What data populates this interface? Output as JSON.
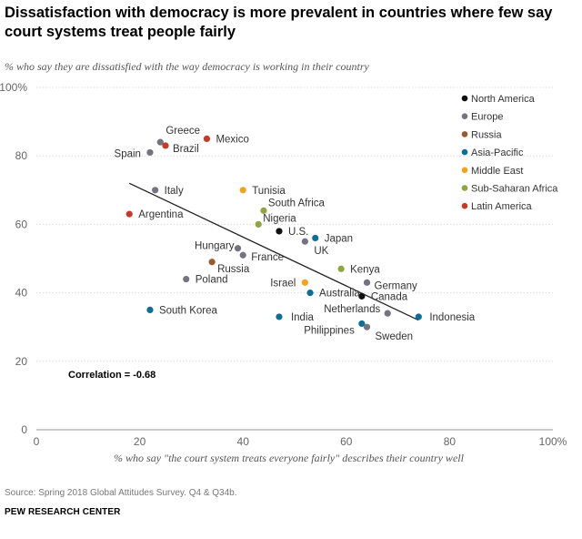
{
  "title": "Dissatisfaction with democracy is more prevalent in countries where few say court systems treat people fairly",
  "subtitle": "% who say they are dissatisfied with the way democracy is working in their country",
  "source": "Source: Spring 2018 Global Attitudes Survey. Q4 & Q34b.",
  "brand": "PEW RESEARCH CENTER",
  "colors": {
    "North America": "#111111",
    "Europe": "#767381",
    "Russia": "#9b5a2e",
    "Asia-Pacific": "#0f6e96",
    "Middle East": "#f0a41e",
    "Sub-Saharan Africa": "#8fa443",
    "Latin America": "#c43b2a"
  },
  "chart_data": {
    "type": "scatter",
    "title": "Dissatisfaction with democracy is more prevalent in countries where few say court systems treat people fairly",
    "xlabel": "% who say \"the court system treats everyone fairly\" describes their country well",
    "ylabel": "% who say they are dissatisfied with the way democracy is working in their country",
    "xlim": [
      0,
      100
    ],
    "ylim": [
      0,
      100
    ],
    "x_ticks": [
      "0",
      "20",
      "40",
      "60",
      "80",
      "100%"
    ],
    "y_ticks": [
      "0",
      "20",
      "40",
      "60",
      "80",
      "100%"
    ],
    "correlation_label": "Correlation = -0.68",
    "trendline": [
      [
        18,
        72
      ],
      [
        74,
        32
      ]
    ],
    "legend": [
      "North America",
      "Europe",
      "Russia",
      "Asia-Pacific",
      "Middle East",
      "Sub-Saharan Africa",
      "Latin America"
    ],
    "points": [
      {
        "label": "Greece",
        "x": 24,
        "y": 84,
        "region": "Europe",
        "pos": "above"
      },
      {
        "label": "Spain",
        "x": 22,
        "y": 81,
        "region": "Europe",
        "pos": "left"
      },
      {
        "label": "Brazil",
        "x": 25,
        "y": 83,
        "region": "Latin America",
        "pos": "right"
      },
      {
        "label": "Mexico",
        "x": 33,
        "y": 85,
        "region": "Latin America",
        "pos": "right"
      },
      {
        "label": "Italy",
        "x": 23,
        "y": 70,
        "region": "Europe",
        "pos": "right"
      },
      {
        "label": "Tunisia",
        "x": 40,
        "y": 70,
        "region": "Middle East",
        "pos": "right"
      },
      {
        "label": "South Africa",
        "x": 44,
        "y": 64,
        "region": "Sub-Saharan Africa",
        "pos": "above-right"
      },
      {
        "label": "Nigeria",
        "x": 43,
        "y": 60,
        "region": "Sub-Saharan Africa",
        "pos": "above-right"
      },
      {
        "label": "Argentina",
        "x": 18,
        "y": 63,
        "region": "Latin America",
        "pos": "right"
      },
      {
        "label": "U.S.",
        "x": 47,
        "y": 58,
        "region": "North America",
        "pos": "right"
      },
      {
        "label": "Japan",
        "x": 54,
        "y": 56,
        "region": "Asia-Pacific",
        "pos": "right"
      },
      {
        "label": "UK",
        "x": 52,
        "y": 55,
        "region": "Europe",
        "pos": "below-right"
      },
      {
        "label": "Hungary",
        "x": 39,
        "y": 53,
        "region": "Europe",
        "pos": "left"
      },
      {
        "label": "France",
        "x": 40,
        "y": 51,
        "region": "Europe",
        "pos": "below-right"
      },
      {
        "label": "Russia",
        "x": 34,
        "y": 49,
        "region": "Russia",
        "pos": "below-right"
      },
      {
        "label": "Kenya",
        "x": 59,
        "y": 47,
        "region": "Sub-Saharan Africa",
        "pos": "right"
      },
      {
        "label": "Poland",
        "x": 29,
        "y": 44,
        "region": "Europe",
        "pos": "right"
      },
      {
        "label": "Germany",
        "x": 64,
        "y": 43,
        "region": "Europe",
        "pos": "right"
      },
      {
        "label": "Israel",
        "x": 52,
        "y": 43,
        "region": "Middle East",
        "pos": "left"
      },
      {
        "label": "Australia",
        "x": 53,
        "y": 40,
        "region": "Asia-Pacific",
        "pos": "right"
      },
      {
        "label": "Canada",
        "x": 63,
        "y": 39,
        "region": "North America",
        "pos": "right"
      },
      {
        "label": "South Korea",
        "x": 22,
        "y": 35,
        "region": "Asia-Pacific",
        "pos": "right"
      },
      {
        "label": "Netherlands",
        "x": 68,
        "y": 34,
        "region": "Europe",
        "pos": "left"
      },
      {
        "label": "India",
        "x": 47,
        "y": 33,
        "region": "Asia-Pacific",
        "pos": "right"
      },
      {
        "label": "Indonesia",
        "x": 74,
        "y": 33,
        "region": "Asia-Pacific",
        "pos": "right"
      },
      {
        "label": "Philippines",
        "x": 63,
        "y": 31,
        "region": "Asia-Pacific",
        "pos": "left"
      },
      {
        "label": "Sweden",
        "x": 64,
        "y": 30,
        "region": "Europe",
        "pos": "below-right"
      }
    ]
  }
}
